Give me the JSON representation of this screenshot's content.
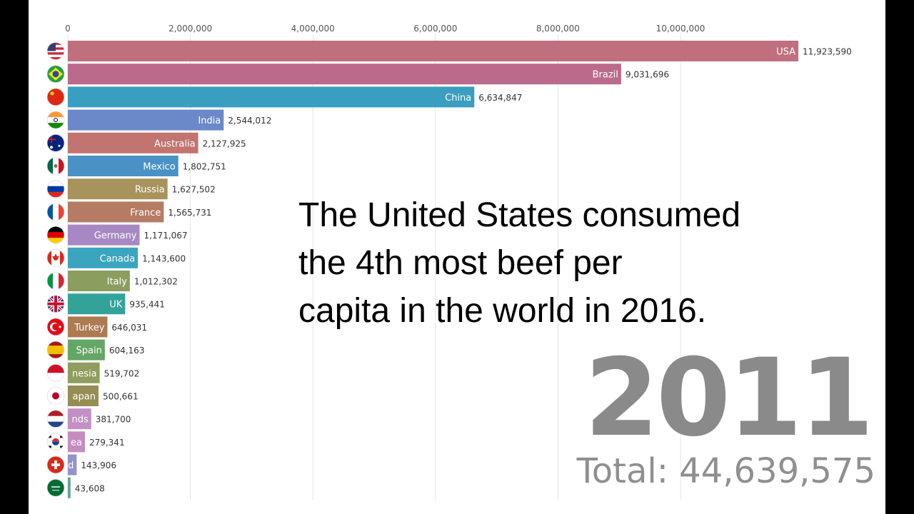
{
  "caption": {
    "line1": "The United States consumed",
    "line2": "the 4th most beef per",
    "line3": "capita in the world in 2016."
  },
  "year_label": "2011",
  "total_label": "Total: 44,639,575",
  "chart_data": {
    "type": "bar",
    "orientation": "horizontal",
    "title": "",
    "xlabel": "",
    "ylabel": "",
    "xlim": [
      0,
      12000000
    ],
    "x_ticks": [
      0,
      2000000,
      4000000,
      6000000,
      8000000,
      10000000
    ],
    "x_tick_labels": [
      "0",
      "2,000,000",
      "4,000,000",
      "6,000,000",
      "8,000,000",
      "10,000,000"
    ],
    "grid": true,
    "categories": [
      "USA",
      "Brazil",
      "China",
      "India",
      "Australia",
      "Mexico",
      "Russia",
      "France",
      "Germany",
      "Canada",
      "Italy",
      "UK",
      "Turkey",
      "Spain",
      "Indonesia",
      "Japan",
      "Netherlands",
      "Korea",
      "Switzerland",
      "Saudi Arabia"
    ],
    "bar_labels": [
      "USA",
      "Brazil",
      "China",
      "India",
      "Australia",
      "Mexico",
      "Russia",
      "France",
      "Germany",
      "Canada",
      "Italy",
      "UK",
      "Turkey",
      "Spain",
      "nesia",
      "apan",
      "nds",
      "ea",
      "d",
      ""
    ],
    "values": [
      11923590,
      9031696,
      6634847,
      2544012,
      2127925,
      1802751,
      1627502,
      1565731,
      1171067,
      1143600,
      1012302,
      935441,
      646031,
      604163,
      519702,
      500661,
      381700,
      279341,
      143906,
      43608
    ],
    "value_labels": [
      "11,923,590",
      "9,031,696",
      "6,634,847",
      "2,544,012",
      "2,127,925",
      "1,802,751",
      "1,627,502",
      "1,565,731",
      "1,171,067",
      "1,143,600",
      "1,012,302",
      "935,441",
      "646,031",
      "604,163",
      "519,702",
      "500,661",
      "381,700",
      "279,341",
      "143,906",
      "43,608"
    ],
    "colors": [
      "#bf6f7d",
      "#bb6a8c",
      "#3a9ec0",
      "#6b89c8",
      "#c27470",
      "#4a92c6",
      "#a8935c",
      "#b67b63",
      "#a788c4",
      "#3ba5bf",
      "#8b9e5f",
      "#33a39a",
      "#ad7a52",
      "#63a665",
      "#8f9d5e",
      "#958e53",
      "#c290c4",
      "#c68cc2",
      "#9391cf",
      "#5ba596"
    ],
    "flags": [
      "usa-flag",
      "brazil-flag",
      "china-flag",
      "india-flag",
      "australia-flag",
      "mexico-flag",
      "russia-flag",
      "france-flag",
      "germany-flag",
      "canada-flag",
      "italy-flag",
      "uk-flag",
      "turkey-flag",
      "spain-flag",
      "indonesia-flag",
      "japan-flag",
      "netherlands-flag",
      "korea-flag",
      "switzerland-flag",
      "saudi-flag"
    ]
  }
}
